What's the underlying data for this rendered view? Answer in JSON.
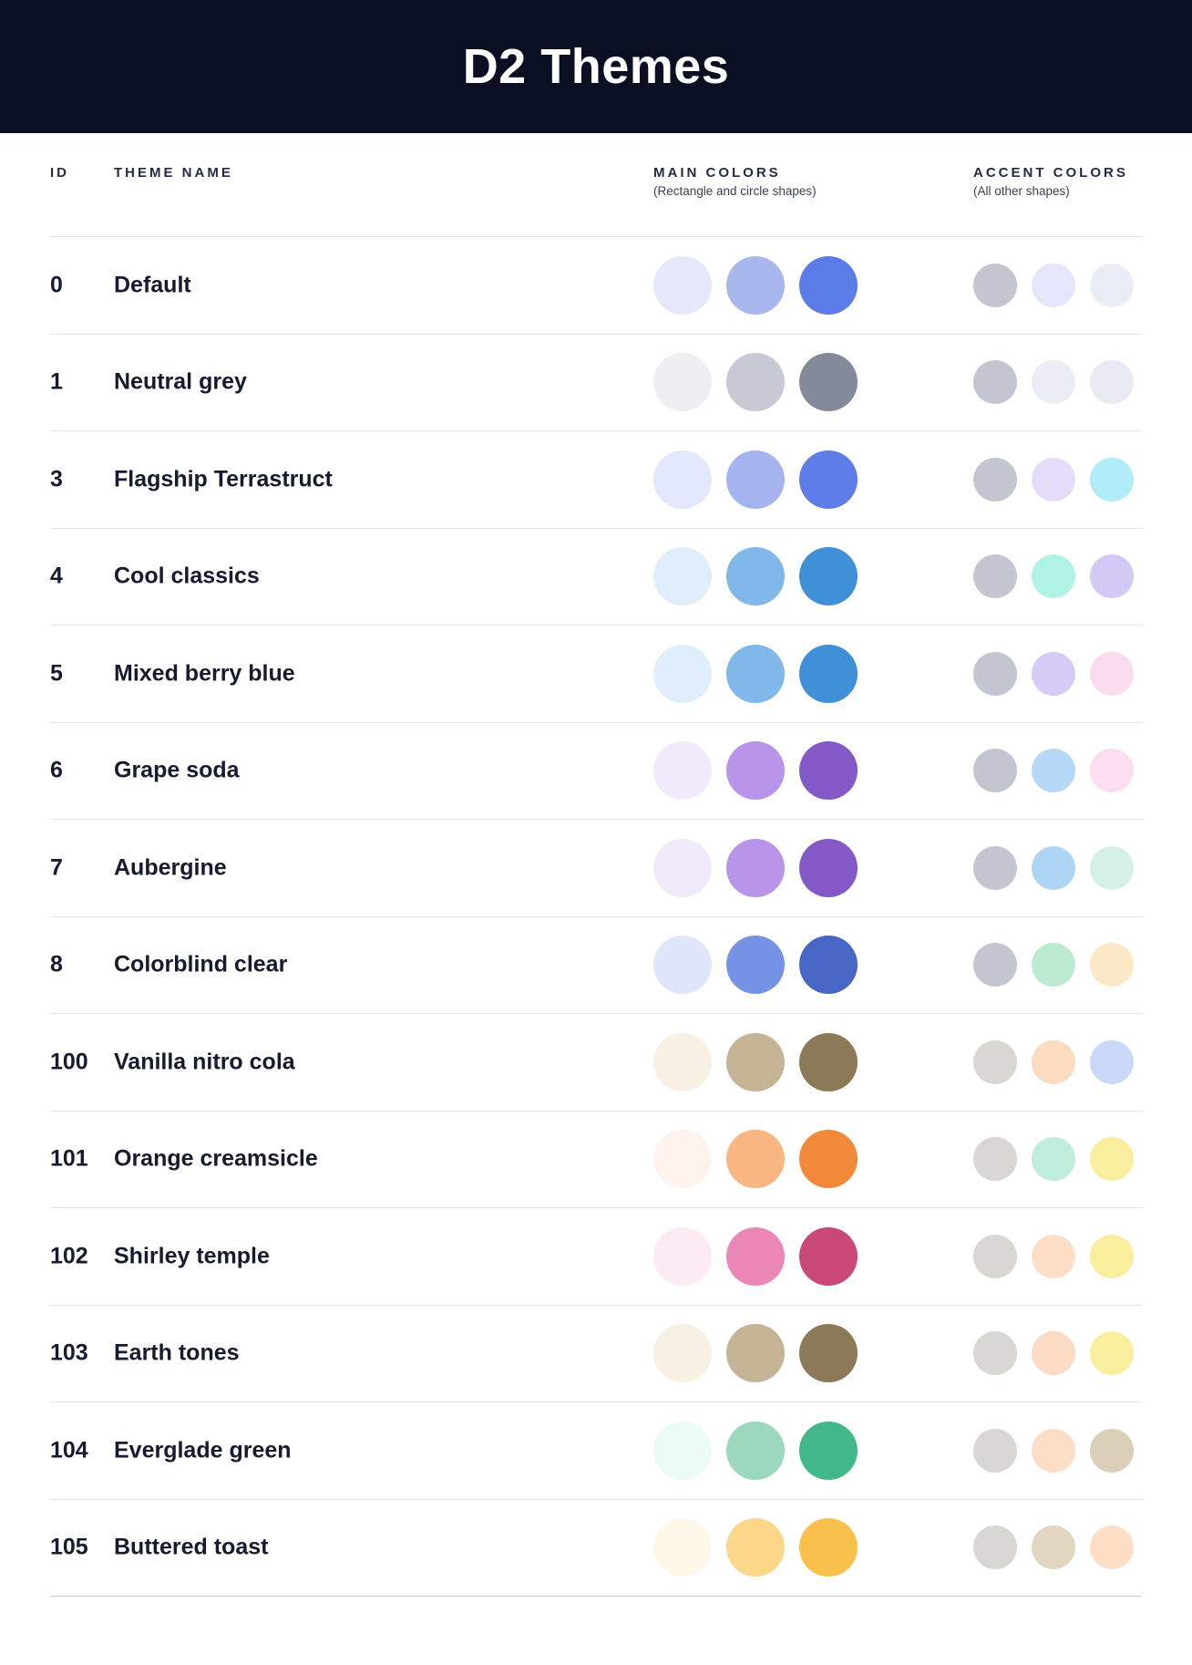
{
  "header": {
    "title": "D2 Themes",
    "background_color": "#0a0f22"
  },
  "table": {
    "columns": {
      "id": "ID",
      "theme_name": "THEME NAME",
      "main_colors": {
        "label": "MAIN COLORS",
        "sublabel": "(Rectangle and circle shapes)"
      },
      "accent_colors": {
        "label": "ACCENT COLORS",
        "sublabel": "(All other shapes)"
      }
    },
    "themes": [
      {
        "id": "0",
        "name": "Default",
        "main_colors": [
          "#e4e8f9",
          "#a8b8ee",
          "#5b7ce8"
        ],
        "accent_colors": [
          "#c3c5d1",
          "#e4e6f9",
          "#e9edf6"
        ]
      },
      {
        "id": "1",
        "name": "Neutral grey",
        "main_colors": [
          "#edeff5",
          "#c7cad4",
          "#848a9a"
        ],
        "accent_colors": [
          "#c3c5d1",
          "#eaedf4",
          "#e8ebf4"
        ]
      },
      {
        "id": "3",
        "name": "Flagship Terrastruct",
        "main_colors": [
          "#e2e7fb",
          "#a5b4ee",
          "#5e7de9"
        ],
        "accent_colors": [
          "#c3c5d1",
          "#e4dcf8",
          "#b0edf8"
        ]
      },
      {
        "id": "4",
        "name": "Cool classics",
        "main_colors": [
          "#dfeefa",
          "#80b8e9",
          "#3f90d6"
        ],
        "accent_colors": [
          "#c3c5d1",
          "#b0f2e4",
          "#d3c9f4"
        ]
      },
      {
        "id": "5",
        "name": "Mixed berry blue",
        "main_colors": [
          "#dfeefa",
          "#80b8e9",
          "#3f90d6"
        ],
        "accent_colors": [
          "#c3c5d1",
          "#d6cbf5",
          "#fbdcef"
        ]
      },
      {
        "id": "6",
        "name": "Grape soda",
        "main_colors": [
          "#f0eafa",
          "#b995e9",
          "#8458c6"
        ],
        "accent_colors": [
          "#c3c5d1",
          "#b5d8f7",
          "#fcddf0"
        ]
      },
      {
        "id": "7",
        "name": "Aubergine",
        "main_colors": [
          "#f0eafa",
          "#b995e9",
          "#8458c6"
        ],
        "accent_colors": [
          "#c3c5d1",
          "#afd5f5",
          "#d5f1e5"
        ]
      },
      {
        "id": "8",
        "name": "Colorblind clear",
        "main_colors": [
          "#dfe5fa",
          "#7692e4",
          "#4866c5"
        ],
        "accent_colors": [
          "#c3c5d1",
          "#bcebd2",
          "#fae8c6"
        ]
      },
      {
        "id": "100",
        "name": "Vanilla nitro cola",
        "main_colors": [
          "#f8f0e3",
          "#c5b396",
          "#8b7957"
        ],
        "accent_colors": [
          "#d8d7d3",
          "#fcdcc0",
          "#cad8f7"
        ]
      },
      {
        "id": "101",
        "name": "Orange creamsicle",
        "main_colors": [
          "#fef4ed",
          "#f8b683",
          "#f08a3a"
        ],
        "accent_colors": [
          "#d8d7d3",
          "#c0edd9",
          "#f9ee9d"
        ]
      },
      {
        "id": "102",
        "name": "Shirley temple",
        "main_colors": [
          "#fdebf3",
          "#ea87b6",
          "#c94876"
        ],
        "accent_colors": [
          "#d8d7d3",
          "#fddec7",
          "#f9ee9d"
        ]
      },
      {
        "id": "103",
        "name": "Earth tones",
        "main_colors": [
          "#f8f0e3",
          "#c5b396",
          "#8b7957"
        ],
        "accent_colors": [
          "#d8d7d3",
          "#fcdcc5",
          "#f9ee9d"
        ]
      },
      {
        "id": "104",
        "name": "Everglade green",
        "main_colors": [
          "#ecfbf4",
          "#9cd8bd",
          "#42b78a"
        ],
        "accent_colors": [
          "#d8d7d3",
          "#fcddc6",
          "#dbcfb8"
        ]
      },
      {
        "id": "105",
        "name": "Buttered toast",
        "main_colors": [
          "#fff8e8",
          "#fdd78a",
          "#f9c14b"
        ],
        "accent_colors": [
          "#d8d7d3",
          "#e0d6c1",
          "#fedec5"
        ]
      }
    ]
  }
}
